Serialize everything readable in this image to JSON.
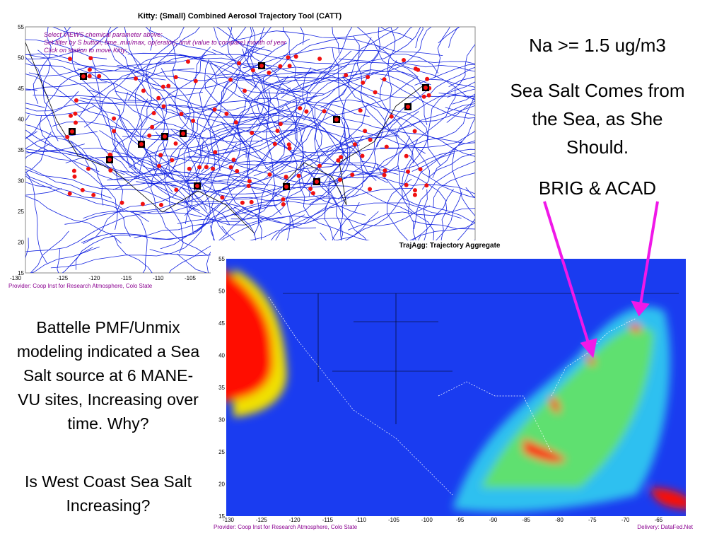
{
  "top_panel": {
    "title": "Kitty: (Small) Combined Aerosol Trajectory Tool (CATT)",
    "instructions": [
      "Select VIEWS chemical parameter above;",
      "Set filter by S button; time_min/max, op(erator); limit (value to compare) month of year",
      "Click on station to move Kitty;"
    ],
    "y_ticks": [
      "55",
      "50",
      "45",
      "40",
      "35",
      "30",
      "25",
      "20",
      "15"
    ],
    "x_ticks": [
      "-130",
      "-125",
      "-120",
      "-115",
      "-110",
      "-105"
    ],
    "provider": "Provider: Coop Inst for Research Atmosphere, Colo State"
  },
  "bottom_panel": {
    "title": "TrajAgg: Trajectory Aggregate",
    "y_ticks": [
      "55",
      "50",
      "45",
      "40",
      "35",
      "30",
      "25",
      "20",
      "15"
    ],
    "x_ticks": [
      "-130",
      "-125",
      "-120",
      "-115",
      "-110",
      "-105",
      "-100",
      "-95",
      "-90",
      "-85",
      "-80",
      "-75",
      "-70",
      "-65"
    ],
    "provider": "Provider: Coop Inst for Research Atmosphere, Colo State",
    "delivery": "Delivery: DataFed.Net"
  },
  "right_text": {
    "heading": "Na >= 1.5 ug/m3",
    "statement": "Sea Salt Comes from the Sea, as She Should.",
    "sites": "BRIG & ACAD"
  },
  "left_text": {
    "finding": "Battelle PMF/Unmix modeling indicated a Sea Salt source at 6 MANE-VU sites, Increasing over time.  Why?",
    "question": "Is West Coast Sea Salt Increasing?"
  }
}
